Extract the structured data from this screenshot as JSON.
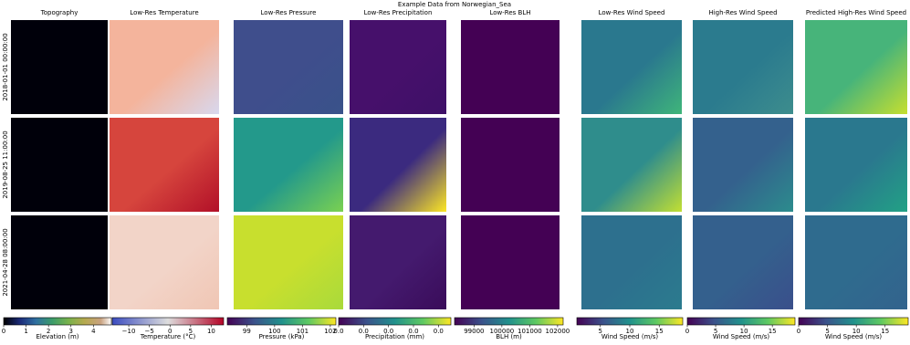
{
  "title": "Example Data from Norwegian_Sea",
  "rows": [
    "2018-01-01 00:00:00",
    "2019-08-25 11:00:00",
    "2021-04-28 08:00:00"
  ],
  "columns": [
    {
      "title": "Topography",
      "colorbar": {
        "label": "Elevation (m)",
        "colormap": "earth",
        "range": [
          0,
          4.8
        ],
        "ticks": [
          0,
          1,
          2,
          3,
          4
        ]
      }
    },
    {
      "title": "Low-Res Temperature",
      "colorbar": {
        "label": "Temperature (°C)",
        "colormap": "coolwarm",
        "range": [
          -14,
          13
        ],
        "ticks": [
          {
            "value": -10,
            "label": "−10"
          },
          {
            "value": -5,
            "label": "−5"
          },
          0,
          5,
          10
        ]
      }
    },
    {
      "title": "Low-Res Pressure",
      "colorbar": {
        "label": "Pressure (kPa)",
        "colormap": "viridis",
        "range": [
          98.3,
          102.2
        ],
        "ticks": [
          99,
          100,
          101,
          102
        ]
      }
    },
    {
      "title": "Low-Res Precipitation",
      "colorbar": {
        "label": "Precipitation (mm)",
        "colormap": "viridis",
        "range": [
          0,
          0.045
        ],
        "ticks": [
          {
            "value": 0,
            "label": "0.0"
          },
          {
            "value": 0.01,
            "label": "0.0"
          },
          {
            "value": 0.02,
            "label": "0.0"
          },
          {
            "value": 0.03,
            "label": "0.0"
          },
          {
            "value": 0.04,
            "label": "0.0"
          }
        ]
      }
    },
    {
      "title": "Low-Res BLH",
      "colorbar": {
        "label": "BLH (m)",
        "colormap": "viridis",
        "range": [
          98300,
          102200
        ],
        "ticks": [
          99000,
          100000,
          101000,
          102000
        ]
      }
    },
    {
      "title": "Low-Res Wind Speed",
      "colorbar": {
        "label": "Wind Speed (m/s)",
        "colormap": "viridis",
        "range": [
          1,
          19
        ],
        "ticks": [
          5,
          10,
          15
        ]
      }
    },
    {
      "title": "High-Res Wind Speed",
      "colorbar": {
        "label": "Wind Speed (m/s)",
        "colormap": "viridis",
        "range": [
          0,
          19
        ],
        "ticks": [
          0,
          5,
          10,
          15
        ]
      }
    },
    {
      "title": "Predicted High-Res Wind Speed",
      "colorbar": {
        "label": "Wind Speed (m/s)",
        "colormap": "viridis",
        "range": [
          0,
          19
        ],
        "ticks": [
          0,
          5,
          10,
          15
        ]
      }
    }
  ]
}
